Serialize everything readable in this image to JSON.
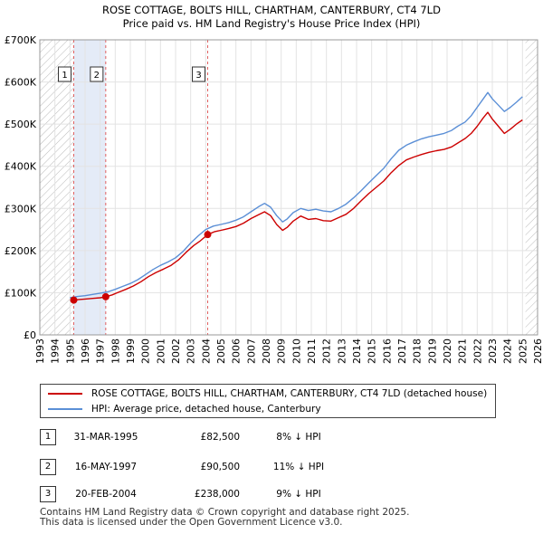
{
  "chart_data": {
    "type": "line",
    "title": "ROSE COTTAGE, BOLTS HILL, CHARTHAM, CANTERBURY, CT4 7LD",
    "subtitle": "Price paid vs. HM Land Registry's House Price Index (HPI)",
    "xlabel": "",
    "ylabel": "",
    "xlim": [
      1993,
      2026
    ],
    "ylim": [
      0,
      700000
    ],
    "yticks": [
      {
        "value": 0,
        "label": "£0"
      },
      {
        "value": 100000,
        "label": "£100K"
      },
      {
        "value": 200000,
        "label": "£200K"
      },
      {
        "value": 300000,
        "label": "£300K"
      },
      {
        "value": 400000,
        "label": "£400K"
      },
      {
        "value": 500000,
        "label": "£500K"
      },
      {
        "value": 600000,
        "label": "£600K"
      },
      {
        "value": 700000,
        "label": "£700K"
      }
    ],
    "xticks": [
      "1993",
      "1994",
      "1995",
      "1996",
      "1997",
      "1998",
      "1999",
      "2000",
      "2001",
      "2002",
      "2003",
      "2004",
      "2005",
      "2006",
      "2007",
      "2008",
      "2009",
      "2010",
      "2011",
      "2012",
      "2013",
      "2014",
      "2015",
      "2016",
      "2017",
      "2018",
      "2019",
      "2020",
      "2021",
      "2022",
      "2023",
      "2024",
      "2025",
      "2026"
    ],
    "grid": true,
    "hatched_ranges": [
      [
        1993,
        1995.25
      ],
      [
        2025.2,
        2026
      ]
    ],
    "highlight_range": [
      1995.25,
      1997.37
    ],
    "series": [
      {
        "name": "ROSE COTTAGE, BOLTS HILL, CHARTHAM, CANTERBURY, CT4 7LD (detached house)",
        "color": "#cc0000",
        "x": [
          1995.25,
          1995.6,
          1996.0,
          1996.5,
          1997.0,
          1997.37,
          1997.8,
          1998.2,
          1998.7,
          1999.2,
          1999.7,
          2000.2,
          2000.7,
          2001.2,
          2001.7,
          2002.2,
          2002.7,
          2003.2,
          2003.6,
          2004.13,
          2004.6,
          2005.0,
          2005.5,
          2006.0,
          2006.5,
          2007.0,
          2007.5,
          2007.9,
          2008.3,
          2008.7,
          2009.1,
          2009.4,
          2009.8,
          2010.3,
          2010.8,
          2011.3,
          2011.8,
          2012.3,
          2012.8,
          2013.3,
          2013.8,
          2014.3,
          2014.8,
          2015.3,
          2015.8,
          2016.3,
          2016.8,
          2017.3,
          2017.8,
          2018.3,
          2018.8,
          2019.3,
          2019.8,
          2020.3,
          2020.7,
          2021.2,
          2021.6,
          2022.0,
          2022.4,
          2022.7,
          2023.0,
          2023.4,
          2023.8,
          2024.2,
          2024.6,
          2025.0
        ],
        "values": [
          82500,
          84000,
          85000,
          86500,
          88000,
          90500,
          95000,
          101000,
          108000,
          116000,
          126000,
          138000,
          148000,
          156000,
          165000,
          178000,
          196000,
          212000,
          222000,
          238000,
          245000,
          248000,
          252000,
          257000,
          265000,
          276000,
          285000,
          292000,
          283000,
          262000,
          248000,
          255000,
          270000,
          282000,
          274000,
          276000,
          271000,
          270000,
          278000,
          286000,
          300000,
          318000,
          335000,
          350000,
          365000,
          385000,
          402000,
          415000,
          422000,
          428000,
          433000,
          437000,
          440000,
          446000,
          455000,
          466000,
          478000,
          495000,
          515000,
          528000,
          512000,
          495000,
          478000,
          488000,
          500000,
          510000
        ]
      },
      {
        "name": "HPI: Average price, detached house, Canterbury",
        "color": "#5b8fd6",
        "x": [
          1995.0,
          1995.5,
          1996.0,
          1996.5,
          1997.0,
          1997.5,
          1998.0,
          1998.5,
          1999.0,
          1999.5,
          2000.0,
          2000.5,
          2001.0,
          2001.5,
          2002.0,
          2002.5,
          2003.0,
          2003.5,
          2004.0,
          2004.5,
          2005.0,
          2005.5,
          2006.0,
          2006.5,
          2007.0,
          2007.5,
          2007.9,
          2008.3,
          2008.7,
          2009.1,
          2009.4,
          2009.8,
          2010.3,
          2010.8,
          2011.3,
          2011.8,
          2012.3,
          2012.8,
          2013.3,
          2013.8,
          2014.3,
          2014.8,
          2015.3,
          2015.8,
          2016.3,
          2016.8,
          2017.3,
          2017.8,
          2018.3,
          2018.8,
          2019.3,
          2019.8,
          2020.3,
          2020.7,
          2021.2,
          2021.6,
          2022.0,
          2022.4,
          2022.7,
          2023.0,
          2023.4,
          2023.8,
          2024.2,
          2024.6,
          2025.0
        ],
        "values": [
          88000,
          91000,
          93000,
          96000,
          99000,
          102000,
          108000,
          115000,
          122000,
          131000,
          143000,
          155000,
          165000,
          173000,
          183000,
          198000,
          218000,
          235000,
          250000,
          258000,
          262000,
          266000,
          272000,
          280000,
          292000,
          304000,
          312000,
          303000,
          283000,
          268000,
          275000,
          290000,
          300000,
          295000,
          298000,
          294000,
          292000,
          300000,
          310000,
          325000,
          342000,
          360000,
          378000,
          395000,
          418000,
          438000,
          450000,
          458000,
          465000,
          470000,
          474000,
          478000,
          485000,
          495000,
          505000,
          520000,
          540000,
          560000,
          575000,
          560000,
          545000,
          530000,
          540000,
          552000,
          565000
        ]
      }
    ],
    "transactions": [
      {
        "marker": "1",
        "x": 1995.25,
        "date": "31-MAR-1995",
        "price": 82500,
        "price_label": "£82,500",
        "hpi": "8% ↓ HPI"
      },
      {
        "marker": "2",
        "x": 1997.37,
        "date": "16-MAY-1997",
        "price": 90500,
        "price_label": "£90,500",
        "hpi": "11% ↓ HPI"
      },
      {
        "marker": "3",
        "x": 2004.13,
        "date": "20-FEB-2004",
        "price": 238000,
        "price_label": "£238,000",
        "hpi": "9% ↓ HPI"
      }
    ],
    "legend_placement": "below"
  },
  "footer": {
    "line1": "Contains HM Land Registry data © Crown copyright and database right 2025.",
    "line2": "This data is licensed under the Open Government Licence v3.0."
  }
}
